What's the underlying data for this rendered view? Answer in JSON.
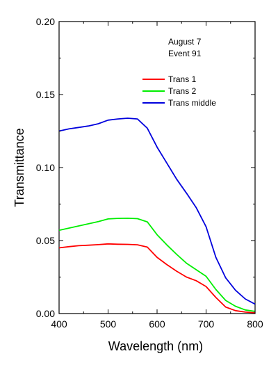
{
  "chart_data": {
    "type": "line",
    "xlabel": "Wavelength (nm)",
    "ylabel": "Transmittance",
    "xlim": [
      400,
      800
    ],
    "ylim": [
      0,
      0.2
    ],
    "x_ticks": [
      400,
      500,
      600,
      700,
      800
    ],
    "x_tick_labels": [
      "400",
      "500",
      "600",
      "700",
      "800"
    ],
    "y_ticks": [
      0,
      0.05,
      0.1,
      0.15,
      0.2
    ],
    "y_tick_labels": [
      "0.00",
      "0.05",
      "0.10",
      "0.15",
      "0.20"
    ],
    "grid": false,
    "legend_position": "top-right",
    "annotations": [
      "August 7",
      "Event 91"
    ],
    "x": [
      400,
      420,
      440,
      460,
      480,
      500,
      520,
      540,
      560,
      580,
      600,
      620,
      640,
      660,
      680,
      700,
      720,
      740,
      760,
      780,
      800
    ],
    "series": [
      {
        "name": "Trans 1",
        "color": "#ff0000",
        "values": [
          0.045,
          0.0458,
          0.0465,
          0.0468,
          0.0472,
          0.0477,
          0.0475,
          0.0474,
          0.0471,
          0.0455,
          0.0385,
          0.0335,
          0.029,
          0.025,
          0.0225,
          0.0185,
          0.011,
          0.0045,
          0.002,
          0.001,
          0.0005
        ]
      },
      {
        "name": "Trans 2",
        "color": "#00ee00",
        "values": [
          0.057,
          0.0585,
          0.06,
          0.0615,
          0.063,
          0.0648,
          0.0652,
          0.0653,
          0.065,
          0.0628,
          0.054,
          0.047,
          0.0405,
          0.0345,
          0.03,
          0.0255,
          0.0165,
          0.009,
          0.005,
          0.0025,
          0.0015
        ]
      },
      {
        "name": "Trans middle",
        "color": "#0000dd",
        "values": [
          0.125,
          0.1265,
          0.1275,
          0.1285,
          0.13,
          0.1325,
          0.1333,
          0.1338,
          0.1333,
          0.127,
          0.114,
          0.103,
          0.092,
          0.0825,
          0.0725,
          0.0595,
          0.0385,
          0.0245,
          0.016,
          0.01,
          0.0065
        ]
      }
    ]
  }
}
